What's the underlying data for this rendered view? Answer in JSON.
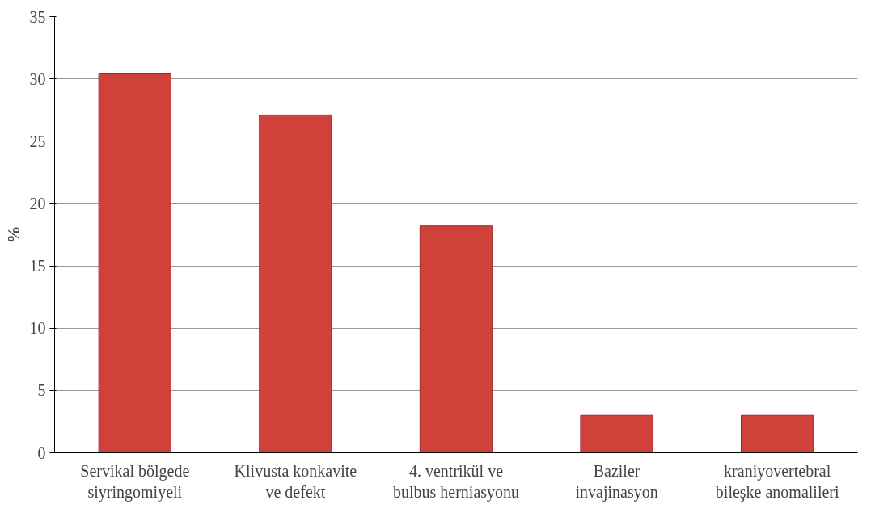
{
  "chart_data": {
    "type": "bar",
    "ylabel": "%",
    "categories": [
      "Servikal bölgede\nsiyringomiyeli",
      "Klivusta konkavite\nve defekt",
      "4. ventrikül ve\nbulbus herniasyonu",
      "Baziler\ninvajinasyon",
      "kraniyovertebral\nbileşke anomalileri"
    ],
    "values": [
      30.4,
      27.1,
      18.2,
      3,
      3
    ],
    "color": "#d0413a",
    "ylim": [
      0,
      35
    ],
    "yticks": [
      0,
      5,
      10,
      15,
      20,
      25,
      30,
      35
    ],
    "grid": "y"
  }
}
